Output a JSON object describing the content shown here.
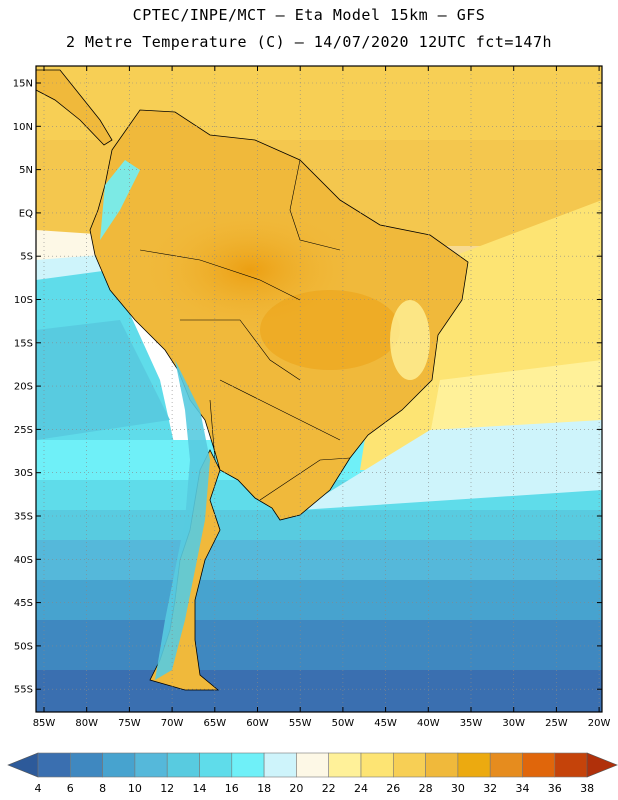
{
  "header": {
    "line1": "CPTEC/INPE/MCT –  Eta Model 15km – GFS",
    "line2": "2 Metre Temperature (C) – 14/07/2020 12UTC fct=147h"
  },
  "map": {
    "lat_labels": [
      "15N",
      "10N",
      "5N",
      "EQ",
      "5S",
      "10S",
      "15S",
      "20S",
      "25S",
      "30S",
      "35S",
      "40S",
      "45S",
      "50S",
      "55S"
    ],
    "lon_labels": [
      "85W",
      "80W",
      "75W",
      "70W",
      "65W",
      "60W",
      "55W",
      "50W",
      "45W",
      "40W",
      "35W",
      "30W",
      "25W",
      "20W"
    ]
  },
  "colorbar": {
    "labels": [
      "4",
      "6",
      "8",
      "10",
      "12",
      "14",
      "16",
      "18",
      "20",
      "22",
      "24",
      "26",
      "28",
      "30",
      "32",
      "34",
      "36",
      "38"
    ],
    "colors": [
      "#3a6fb0",
      "#3f88c0",
      "#47a3cf",
      "#55b8da",
      "#58cbe0",
      "#5fdcea",
      "#6ff0f8",
      "#cef4fb",
      "#fdf8e6",
      "#fff199",
      "#fde473",
      "#f7cf55",
      "#f0b93b",
      "#ecaa10",
      "#e68c1e",
      "#e0660b",
      "#c5430a"
    ],
    "below_color": "#2d5a9a",
    "above_color": "#b0300a"
  }
}
